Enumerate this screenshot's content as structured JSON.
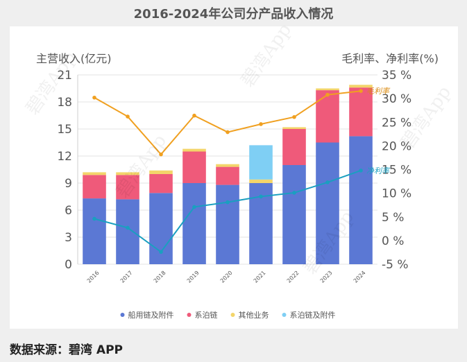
{
  "source_label": "数据来源：碧湾 APP",
  "watermark_text": "碧湾App",
  "chart_data": {
    "type": "bar",
    "title": "2016-2024年公司分产品收入情况",
    "ylabel": "主营收入(亿元)",
    "y2label": "毛利率、净利率(%)",
    "ylim": [
      0,
      21
    ],
    "y2lim": [
      -5,
      35
    ],
    "yticks": [
      "0",
      "3",
      "6",
      "9",
      "12",
      "15",
      "18",
      "21"
    ],
    "y2ticks": [
      "-5 %",
      "0 %",
      "5 %",
      "10 %",
      "15 %",
      "20 %",
      "25 %",
      "30 %",
      "35 %"
    ],
    "categories": [
      "2016",
      "2017",
      "2018",
      "2019",
      "2020",
      "2021",
      "2022",
      "2023",
      "2024"
    ],
    "series": [
      {
        "name": "船用链及附件",
        "color": "#5b78d4",
        "values": [
          7.3,
          7.2,
          7.9,
          9.0,
          8.8,
          9.0,
          11.0,
          13.5,
          14.2
        ]
      },
      {
        "name": "系泊链",
        "color": "#ef5a7a",
        "values": [
          2.6,
          2.7,
          2.1,
          3.5,
          2.0,
          0.0,
          4.0,
          5.8,
          5.4
        ]
      },
      {
        "name": "其他业务",
        "color": "#f3d56a",
        "values": [
          0.3,
          0.3,
          0.4,
          0.3,
          0.3,
          0.4,
          0.2,
          0.2,
          0.3
        ]
      },
      {
        "name": "系泊链及附件",
        "color": "#7fcff4",
        "values": [
          0,
          0,
          0,
          0,
          0,
          3.8,
          0,
          0,
          0
        ]
      }
    ],
    "lines": [
      {
        "name": "毛利率",
        "color": "#f0a020",
        "label_color": "#d98a10",
        "values": [
          30.2,
          26.2,
          18.2,
          26.4,
          22.9,
          24.6,
          26.1,
          30.8,
          31.6
        ]
      },
      {
        "name": "净利率",
        "color": "#1a9fc0",
        "label_color": "#1a9fc0",
        "values": [
          4.6,
          2.7,
          -2.4,
          7.1,
          8.1,
          9.3,
          10.1,
          12.3,
          14.8
        ]
      }
    ],
    "legend_position": "bottom"
  }
}
